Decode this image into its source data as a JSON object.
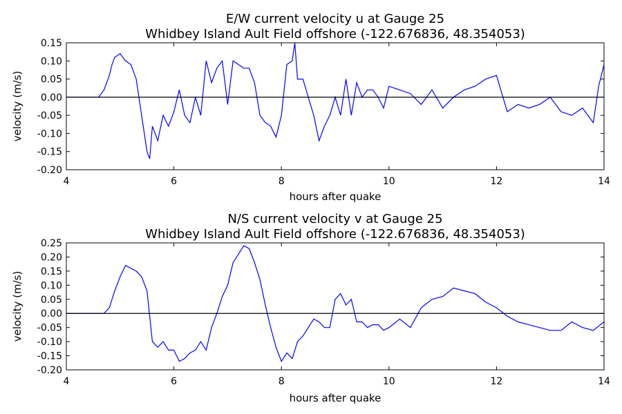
{
  "chart_data": [
    {
      "type": "line",
      "title": "E/W current velocity u at Gauge 25",
      "subtitle": "Whidbey Island Ault Field offshore  (-122.676836, 48.354053)",
      "xlabel": "hours after quake",
      "ylabel": "velocity (m/s)",
      "xlim": [
        4,
        14
      ],
      "ylim": [
        -0.2,
        0.15
      ],
      "xticks": [
        "4",
        "6",
        "8",
        "10",
        "12",
        "14"
      ],
      "yticks": [
        "0.15",
        "0.10",
        "0.05",
        "0.00",
        "-0.05",
        "-0.10",
        "-0.15",
        "-0.20"
      ],
      "reference_line_y": 0,
      "line_color": "#0000ff",
      "grid": false,
      "series": [
        {
          "x": [
            4.0,
            4.4,
            4.6,
            4.7,
            4.8,
            4.85,
            4.9,
            5.0,
            5.05,
            5.1,
            5.2,
            5.3,
            5.35,
            5.4,
            5.45,
            5.5,
            5.55,
            5.6,
            5.7,
            5.8,
            5.9,
            6.0,
            6.1,
            6.2,
            6.3,
            6.4,
            6.5,
            6.6,
            6.7,
            6.8,
            6.9,
            7.0,
            7.1,
            7.2,
            7.3,
            7.4,
            7.5,
            7.6,
            7.7,
            7.8,
            7.9,
            8.0,
            8.1,
            8.2,
            8.25,
            8.3,
            8.4,
            8.5,
            8.6,
            8.7,
            8.8,
            8.9,
            9.0,
            9.1,
            9.2,
            9.3,
            9.4,
            9.5,
            9.6,
            9.7,
            9.8,
            9.9,
            10.0,
            10.2,
            10.4,
            10.6,
            10.8,
            11.0,
            11.2,
            11.4,
            11.6,
            11.8,
            12.0,
            12.2,
            12.4,
            12.6,
            12.8,
            13.0,
            13.2,
            13.4,
            13.6,
            13.8,
            13.9,
            14.0
          ],
          "y": [
            0.0,
            0.0,
            0.0,
            0.02,
            0.06,
            0.09,
            0.11,
            0.12,
            0.11,
            0.1,
            0.09,
            0.05,
            0.0,
            -0.05,
            -0.1,
            -0.15,
            -0.17,
            -0.08,
            -0.12,
            -0.05,
            -0.08,
            -0.04,
            0.02,
            -0.05,
            -0.07,
            0.0,
            -0.05,
            0.1,
            0.04,
            0.08,
            0.1,
            -0.02,
            0.1,
            0.09,
            0.08,
            0.08,
            0.04,
            -0.05,
            -0.07,
            -0.08,
            -0.11,
            -0.05,
            0.09,
            0.1,
            0.15,
            0.05,
            0.05,
            0.0,
            -0.05,
            -0.12,
            -0.08,
            -0.05,
            0.0,
            -0.05,
            0.05,
            -0.05,
            0.04,
            0.0,
            0.02,
            0.02,
            0.0,
            -0.03,
            0.03,
            0.02,
            0.01,
            -0.02,
            0.02,
            -0.03,
            0.0,
            0.02,
            0.03,
            0.05,
            0.06,
            -0.04,
            -0.02,
            -0.03,
            -0.02,
            0.0,
            -0.04,
            -0.05,
            -0.03,
            -0.07,
            0.03,
            0.09
          ]
        }
      ]
    },
    {
      "type": "line",
      "title": "N/S current velocity v at Gauge 25",
      "subtitle": "Whidbey Island Ault Field offshore  (-122.676836, 48.354053)",
      "xlabel": "hours after quake",
      "ylabel": "velocity (m/s)",
      "xlim": [
        4,
        14
      ],
      "ylim": [
        -0.2,
        0.25
      ],
      "xticks": [
        "4",
        "6",
        "8",
        "10",
        "12",
        "14"
      ],
      "yticks": [
        "0.25",
        "0.20",
        "0.15",
        "0.10",
        "0.05",
        "0.00",
        "-0.05",
        "-0.10",
        "-0.15",
        "-0.20"
      ],
      "reference_line_y": 0,
      "line_color": "#0000ff",
      "grid": false,
      "series": [
        {
          "x": [
            4.0,
            4.4,
            4.7,
            4.8,
            4.9,
            5.0,
            5.1,
            5.2,
            5.3,
            5.4,
            5.5,
            5.6,
            5.7,
            5.8,
            5.9,
            6.0,
            6.1,
            6.2,
            6.3,
            6.4,
            6.5,
            6.6,
            6.7,
            6.8,
            6.9,
            7.0,
            7.1,
            7.2,
            7.3,
            7.4,
            7.5,
            7.6,
            7.7,
            7.8,
            7.9,
            8.0,
            8.1,
            8.2,
            8.3,
            8.4,
            8.5,
            8.6,
            8.7,
            8.8,
            8.9,
            9.0,
            9.1,
            9.2,
            9.3,
            9.4,
            9.5,
            9.6,
            9.7,
            9.8,
            9.9,
            10.0,
            10.2,
            10.4,
            10.6,
            10.8,
            11.0,
            11.2,
            11.4,
            11.6,
            11.8,
            12.0,
            12.2,
            12.4,
            12.6,
            12.8,
            13.0,
            13.2,
            13.4,
            13.6,
            13.8,
            14.0
          ],
          "y": [
            0.0,
            0.0,
            0.0,
            0.02,
            0.08,
            0.13,
            0.17,
            0.16,
            0.15,
            0.13,
            0.08,
            -0.1,
            -0.12,
            -0.1,
            -0.13,
            -0.13,
            -0.17,
            -0.16,
            -0.14,
            -0.13,
            -0.1,
            -0.13,
            -0.05,
            0.0,
            0.06,
            0.1,
            0.18,
            0.21,
            0.24,
            0.23,
            0.18,
            0.12,
            0.03,
            -0.05,
            -0.12,
            -0.17,
            -0.14,
            -0.16,
            -0.1,
            -0.08,
            -0.05,
            -0.02,
            -0.03,
            -0.05,
            -0.05,
            0.05,
            0.07,
            0.03,
            0.05,
            -0.03,
            -0.03,
            -0.05,
            -0.04,
            -0.04,
            -0.06,
            -0.05,
            -0.02,
            -0.05,
            0.02,
            0.05,
            0.06,
            0.09,
            0.08,
            0.07,
            0.04,
            0.02,
            -0.01,
            -0.03,
            -0.04,
            -0.05,
            -0.06,
            -0.06,
            -0.03,
            -0.05,
            -0.06,
            -0.03
          ]
        }
      ]
    }
  ]
}
